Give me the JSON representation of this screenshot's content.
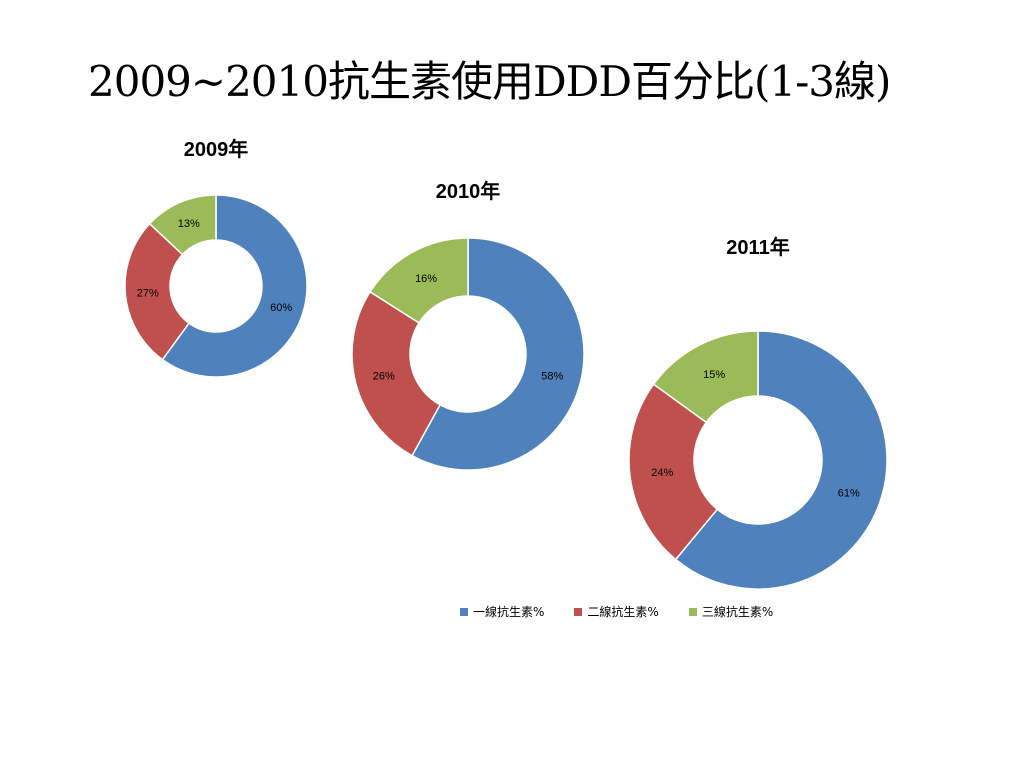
{
  "slide": {
    "title": "2009~2010抗生素使用DDD百分比(1-3線)"
  },
  "chart_data": [
    {
      "type": "pie",
      "variant": "doughnut",
      "title": "2009年",
      "categories": [
        "一線抗生素%",
        "二線抗生素%",
        "三線抗生素%"
      ],
      "values": [
        60,
        27,
        13
      ],
      "labels": [
        "60%",
        "27%",
        "13%"
      ]
    },
    {
      "type": "pie",
      "variant": "doughnut",
      "title": "2010年",
      "categories": [
        "一線抗生素%",
        "二線抗生素%",
        "三線抗生素%"
      ],
      "values": [
        58,
        26,
        16
      ],
      "labels": [
        "58%",
        "26%",
        "16%"
      ]
    },
    {
      "type": "pie",
      "variant": "doughnut",
      "title": "2011年",
      "categories": [
        "一線抗生素%",
        "二線抗生素%",
        "三線抗生素%"
      ],
      "values": [
        61,
        24,
        15
      ],
      "labels": [
        "61%",
        "24%",
        "15%"
      ]
    }
  ],
  "legend": {
    "placement": "bottom",
    "items": [
      {
        "label": "一線抗生素%",
        "color": "#4F81BD"
      },
      {
        "label": "二線抗生素%",
        "color": "#C0504D"
      },
      {
        "label": "三線抗生素%",
        "color": "#9BBB59"
      }
    ]
  }
}
